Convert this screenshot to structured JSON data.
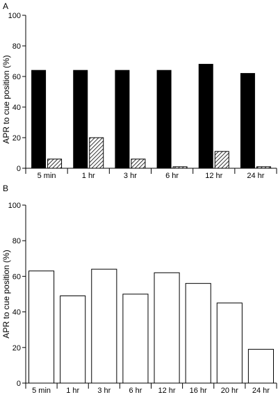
{
  "chart_data": [
    {
      "panel": "A",
      "type": "bar",
      "categories": [
        "5 min",
        "1 hr",
        "3 hr",
        "6 hr",
        "12 hr",
        "24 hr"
      ],
      "series": [
        {
          "fill": "solid",
          "color": "#000000",
          "values": [
            64,
            64,
            64,
            64,
            68,
            62
          ]
        },
        {
          "fill": "hatched",
          "color": "#000000",
          "values": [
            6,
            20,
            6,
            1,
            11,
            1
          ]
        }
      ],
      "ylabel": "APR to cue position (%)",
      "xlabel": "",
      "ylim": [
        0,
        100
      ],
      "yticks": [
        "0",
        "20",
        "40",
        "60",
        "80",
        "100"
      ],
      "grid": false,
      "legend": "none"
    },
    {
      "panel": "B",
      "type": "bar",
      "categories": [
        "5 min",
        "1 hr",
        "3 hr",
        "6 hr",
        "12 hr",
        "16 hr",
        "20 hr",
        "24 hr"
      ],
      "series": [
        {
          "fill": "open",
          "color": "#ffffff",
          "values": [
            63,
            49,
            64,
            50,
            62,
            56,
            45,
            19
          ]
        }
      ],
      "ylabel": "APR to cue position (%)",
      "xlabel": "",
      "ylim": [
        0,
        100
      ],
      "yticks": [
        "0",
        "20",
        "40",
        "60",
        "80",
        "100"
      ],
      "grid": false,
      "legend": "none"
    }
  ]
}
